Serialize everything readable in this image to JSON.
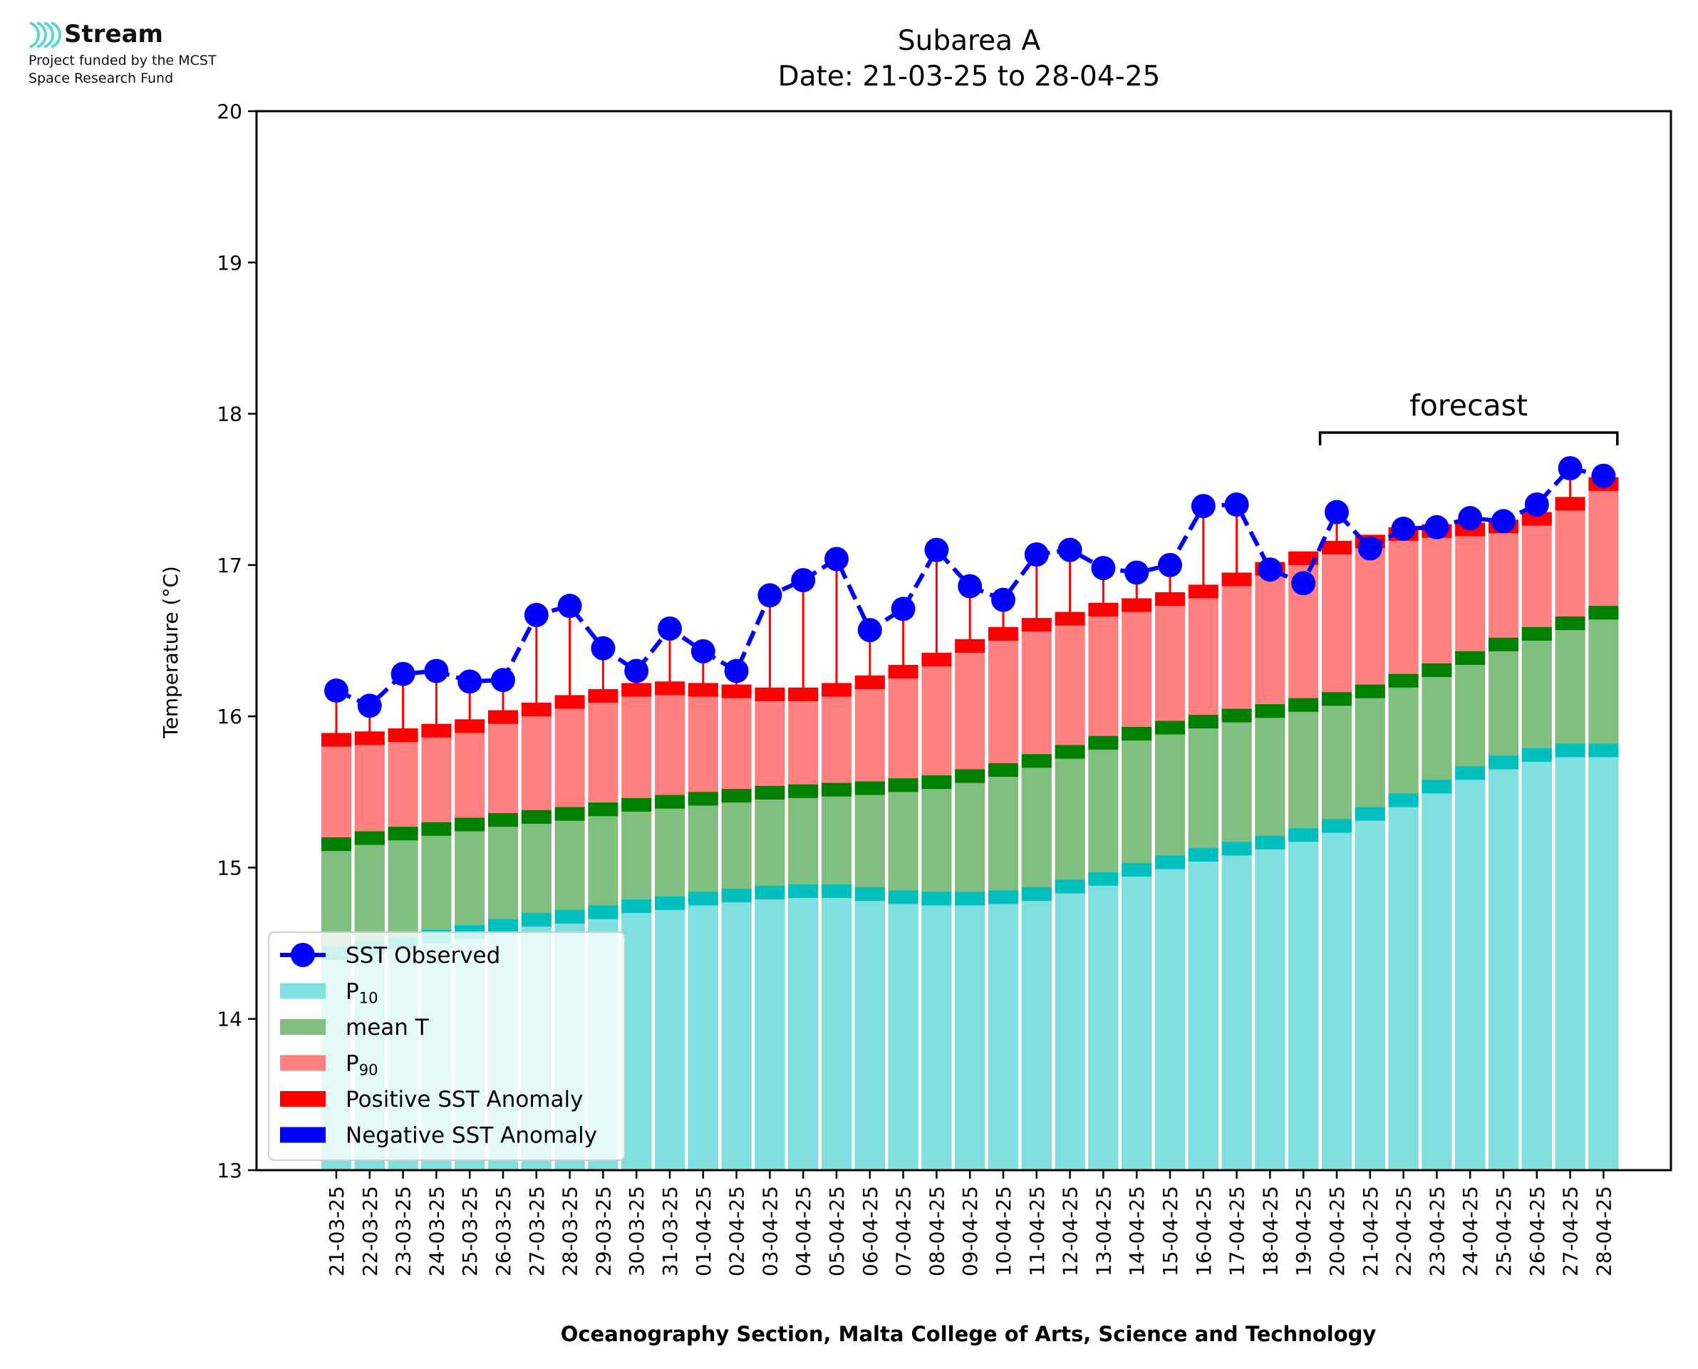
{
  "logo": {
    "name": "Stream",
    "line1": "Project funded by the MCST",
    "line2": "Space Research Fund",
    "color": "#5fd3d3"
  },
  "chart_data": {
    "type": "bar",
    "title": "Subarea A",
    "subtitle": "Date: 21-03-25 to 28-04-25",
    "xlabel": "Oceanography Section, Malta College of Arts, Science and Technology",
    "ylabel": "Temperature (°C)",
    "ylim": [
      13,
      20
    ],
    "yticks": [
      13,
      14,
      15,
      16,
      17,
      18,
      19,
      20
    ],
    "categories": [
      "21-03-25",
      "22-03-25",
      "23-03-25",
      "24-03-25",
      "25-03-25",
      "26-03-25",
      "27-03-25",
      "28-03-25",
      "29-03-25",
      "30-03-25",
      "31-03-25",
      "01-04-25",
      "02-04-25",
      "03-04-25",
      "04-04-25",
      "05-04-25",
      "06-04-25",
      "07-04-25",
      "08-04-25",
      "09-04-25",
      "10-04-25",
      "11-04-25",
      "12-04-25",
      "13-04-25",
      "14-04-25",
      "15-04-25",
      "16-04-25",
      "17-04-25",
      "18-04-25",
      "19-04-25",
      "20-04-25",
      "21-04-25",
      "22-04-25",
      "23-04-25",
      "24-04-25",
      "25-04-25",
      "26-04-25",
      "27-04-25",
      "28-04-25"
    ],
    "series": [
      {
        "name": "P10",
        "kind": "bar",
        "color": "#80dfdf",
        "edge_color": "#00bfbf",
        "values": [
          14.48,
          14.52,
          14.55,
          14.59,
          14.62,
          14.66,
          14.7,
          14.72,
          14.75,
          14.79,
          14.81,
          14.84,
          14.86,
          14.88,
          14.89,
          14.89,
          14.87,
          14.85,
          14.84,
          14.84,
          14.85,
          14.87,
          14.92,
          14.97,
          15.03,
          15.08,
          15.13,
          15.17,
          15.21,
          15.26,
          15.32,
          15.4,
          15.49,
          15.58,
          15.67,
          15.74,
          15.79,
          15.82,
          15.82
        ]
      },
      {
        "name": "mean T",
        "kind": "bar",
        "color": "#80bf80",
        "edge_color": "#008000",
        "values": [
          15.2,
          15.24,
          15.27,
          15.3,
          15.33,
          15.36,
          15.38,
          15.4,
          15.43,
          15.46,
          15.48,
          15.5,
          15.52,
          15.54,
          15.55,
          15.56,
          15.57,
          15.59,
          15.61,
          15.65,
          15.69,
          15.75,
          15.81,
          15.87,
          15.93,
          15.97,
          16.01,
          16.05,
          16.08,
          16.12,
          16.16,
          16.21,
          16.28,
          16.35,
          16.43,
          16.52,
          16.59,
          16.66,
          16.73
        ]
      },
      {
        "name": "P90",
        "kind": "bar",
        "color": "#ff8080",
        "edge_color": "#ff0000",
        "values": [
          15.89,
          15.9,
          15.92,
          15.95,
          15.98,
          16.04,
          16.09,
          16.14,
          16.18,
          16.22,
          16.23,
          16.22,
          16.21,
          16.19,
          16.19,
          16.22,
          16.27,
          16.34,
          16.42,
          16.51,
          16.59,
          16.65,
          16.69,
          16.75,
          16.78,
          16.82,
          16.87,
          16.95,
          17.02,
          17.09,
          17.16,
          17.2,
          17.25,
          17.27,
          17.28,
          17.3,
          17.35,
          17.45,
          17.58
        ]
      },
      {
        "name": "SST Observed",
        "kind": "line",
        "color": "#0000ff",
        "values": [
          16.17,
          16.07,
          16.28,
          16.3,
          16.23,
          16.24,
          16.67,
          16.73,
          16.45,
          16.3,
          16.58,
          16.43,
          16.3,
          16.8,
          16.9,
          17.04,
          16.57,
          16.71,
          17.1,
          16.86,
          16.77,
          17.07,
          17.1,
          16.98,
          16.95,
          17.0,
          17.39,
          17.4,
          16.97,
          16.88,
          17.35,
          17.11,
          17.24,
          17.25,
          17.31,
          17.29,
          17.4,
          17.64,
          17.59
        ]
      }
    ],
    "legend": {
      "position": "bottom-left",
      "entries": [
        "SST Observed",
        "P10",
        "mean T",
        "P90",
        "Positive SST Anomaly",
        "Negative SST Anomaly"
      ],
      "subscripts": {
        "P10": "10",
        "P90": "90"
      },
      "anomaly_colors": {
        "Positive SST Anomaly": "#ff0000",
        "Negative SST Anomaly": "#0000ff"
      }
    },
    "annotation": {
      "text": "forecast",
      "from": "20-04-25",
      "to": "28-04-25"
    },
    "grid": false
  }
}
